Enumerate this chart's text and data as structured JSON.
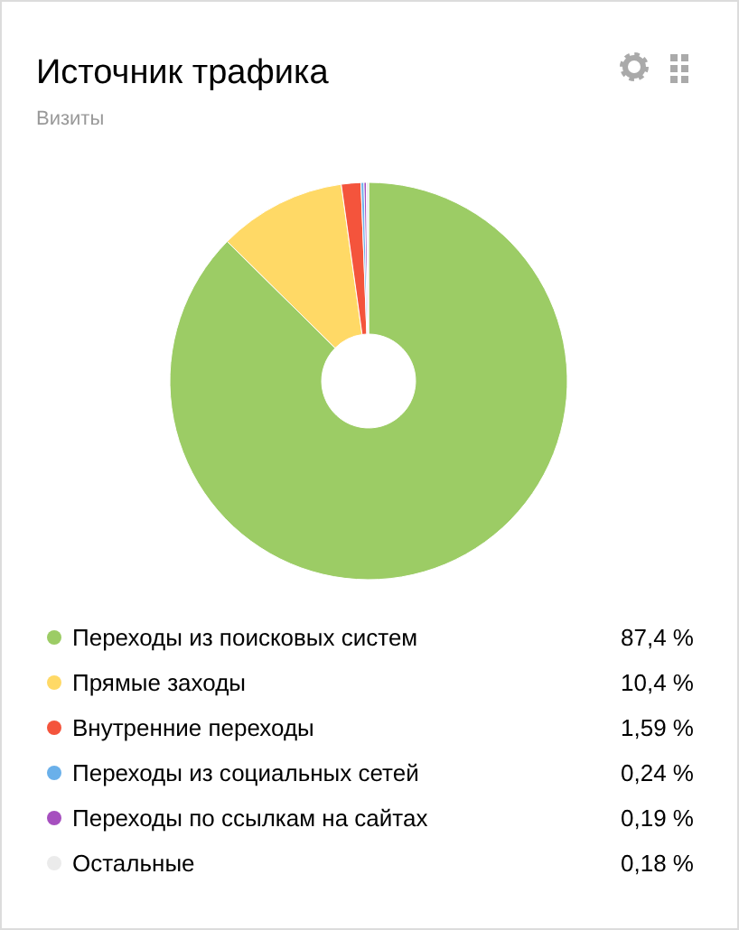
{
  "chart_data": {
    "type": "donut",
    "title": "Источник трафика",
    "subtitle": "Визиты",
    "categories": [
      "Переходы из поисковых систем",
      "Прямые заходы",
      "Внутренние переходы",
      "Переходы из социальных сетей",
      "Переходы по ссылкам на сайтах",
      "Остальные"
    ],
    "values": [
      87.4,
      10.4,
      1.59,
      0.24,
      0.19,
      0.18
    ],
    "value_labels": [
      "87,4 %",
      "10,4 %",
      "1,59 %",
      "0,24 %",
      "0,19 %",
      "0,18 %"
    ],
    "colors": [
      "#9ccc65",
      "#ffd966",
      "#f4543c",
      "#6ab0ea",
      "#a64fbf",
      "#ebebeb"
    ],
    "legend": "bottom"
  }
}
